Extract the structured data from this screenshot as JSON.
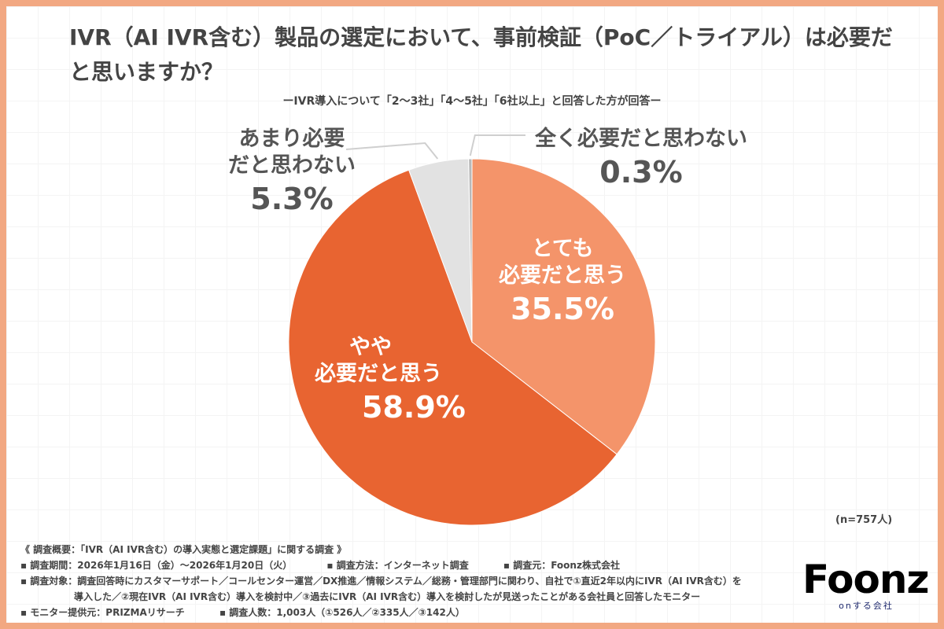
{
  "title": "IVR（AI IVR含む）製品の選定において、事前検証（PoC／トライアル）は必要だと思いますか？",
  "subtitle": "ーIVR導入について「2〜3社」「4〜5社」「6社以上」と回答した方が回答ー",
  "sample_size": "(n=757人)",
  "chart_data": {
    "type": "pie",
    "title": "IVR（AI IVR含む）製品の選定において、事前検証（PoC／トライアル）は必要だと思いますか？",
    "categories": [
      "とても必要だと思う",
      "やや必要だと思う",
      "あまり必要だと思わない",
      "全く必要だと思わない"
    ],
    "values": [
      35.5,
      58.9,
      5.3,
      0.3
    ],
    "unit": "%",
    "colors": [
      "#f4946a",
      "#e86431",
      "#e2e2e2",
      "#b9b9b9"
    ],
    "labels": [
      {
        "line1": "とても",
        "line2": "必要だと思う",
        "pct": "35.5%"
      },
      {
        "line1": "やや",
        "line2": "必要だと思う",
        "pct": "58.9%"
      },
      {
        "line1": "あまり必要",
        "line2": "だと思わない",
        "pct": "5.3%"
      },
      {
        "line1": "全く必要だと思わない",
        "line2": "",
        "pct": "0.3%"
      }
    ]
  },
  "survey": {
    "heading": "《 調査概要：「IVR（AI IVR含む）の導入実態と選定課題」に関する調査 》",
    "period": "▪ 調査期間：2026年1月16日（金）〜2026年1月20日（火）",
    "method": "▪ 調査方法：インターネット調査",
    "source": "▪ 調査元：Foonz株式会社",
    "target_line1": "▪ 調査対象：調査回答時にカスタマーサポート／コールセンター運営／DX推進／情報システム／総務・管理部門に関わり、自社で①直近2年以内にIVR（AI IVR含む）を",
    "target_line2": "導入した／②現在IVR（AI IVR含む）導入を検討中／③過去にIVR（AI IVR含む）導入を検討したが見送ったことがある会社員と回答したモニター",
    "monitor": "▪ モニター提供元：PRIZMAリサーチ",
    "respondents": "▪ 調査人数：1,003人（①526人／②335人／③142人）"
  },
  "logo": {
    "word": "Foonz",
    "tagline": "onする会社"
  }
}
